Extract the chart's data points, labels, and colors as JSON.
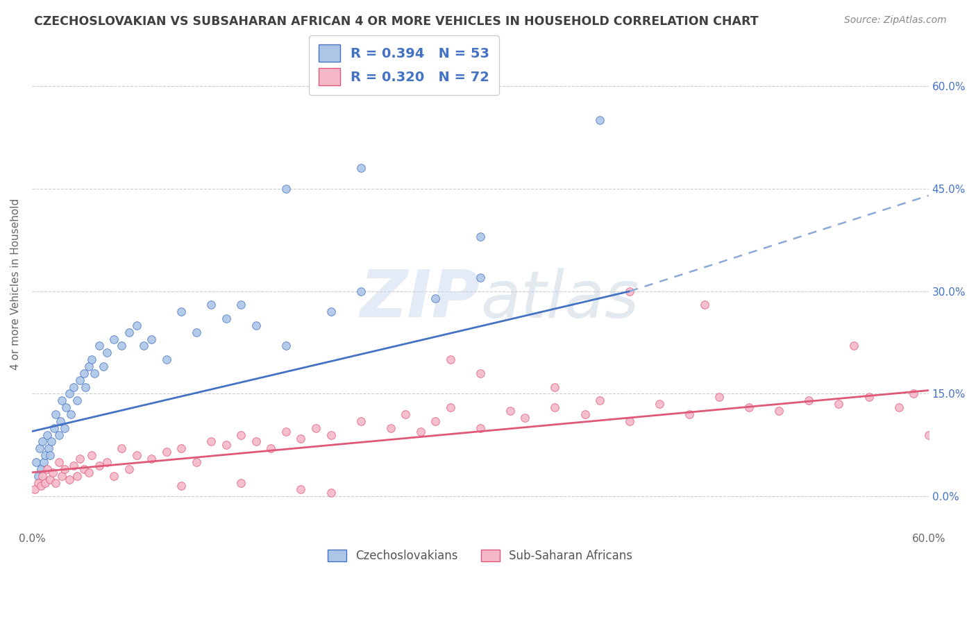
{
  "title": "CZECHOSLOVAKIAN VS SUBSAHARAN AFRICAN 4 OR MORE VEHICLES IN HOUSEHOLD CORRELATION CHART",
  "source": "Source: ZipAtlas.com",
  "ylabel": "4 or more Vehicles in Household",
  "legend1_label": "Czechoslovakians",
  "legend2_label": "Sub-Saharan Africans",
  "xlim": [
    0,
    60
  ],
  "ylim": [
    -5,
    67
  ],
  "ytick_vals": [
    0,
    15,
    30,
    45,
    60
  ],
  "ytick_labels": [
    "0.0%",
    "15.0%",
    "30.0%",
    "45.0%",
    "60.0%"
  ],
  "xtick_vals": [
    0,
    60
  ],
  "xtick_labels": [
    "0.0%",
    "60.0%"
  ],
  "blue_scatter_color": "#adc6e8",
  "pink_scatter_color": "#f5b8c8",
  "blue_line_color": "#4472c4",
  "pink_line_color": "#e05878",
  "blue_dashed_color": "#8aa8d8",
  "right_tick_color": "#4472c4",
  "title_color": "#404040",
  "background_color": "#ffffff",
  "grid_color": "#cccccc",
  "watermark": "ZIPatlas",
  "r_czech": 0.394,
  "n_czech": 53,
  "r_subsaharan": 0.32,
  "n_subsaharan": 72,
  "czech_line_x0": 0,
  "czech_line_y0": 9.5,
  "czech_line_x1": 40,
  "czech_line_y1": 30.0,
  "czech_dash_x0": 40,
  "czech_dash_y0": 30.0,
  "czech_dash_x1": 60,
  "czech_dash_y1": 44.0,
  "sub_line_x0": 0,
  "sub_line_y0": 3.5,
  "sub_line_x1": 60,
  "sub_line_y1": 15.5,
  "czech_scatter_x": [
    0.3,
    0.4,
    0.5,
    0.6,
    0.7,
    0.8,
    0.9,
    1.0,
    1.1,
    1.2,
    1.3,
    1.5,
    1.6,
    1.8,
    1.9,
    2.0,
    2.2,
    2.3,
    2.5,
    2.6,
    2.8,
    3.0,
    3.2,
    3.5,
    3.6,
    3.8,
    4.0,
    4.2,
    4.5,
    4.8,
    5.0,
    5.5,
    6.0,
    6.5,
    7.0,
    7.5,
    8.0,
    9.0,
    10.0,
    11.0,
    12.0,
    13.0,
    14.0,
    15.0,
    17.0,
    20.0,
    22.0,
    27.0,
    30.0,
    38.0,
    17.0,
    22.0,
    30.0
  ],
  "czech_scatter_y": [
    5.0,
    3.0,
    7.0,
    4.0,
    8.0,
    5.0,
    6.0,
    9.0,
    7.0,
    6.0,
    8.0,
    10.0,
    12.0,
    9.0,
    11.0,
    14.0,
    10.0,
    13.0,
    15.0,
    12.0,
    16.0,
    14.0,
    17.0,
    18.0,
    16.0,
    19.0,
    20.0,
    18.0,
    22.0,
    19.0,
    21.0,
    23.0,
    22.0,
    24.0,
    25.0,
    22.0,
    23.0,
    20.0,
    27.0,
    24.0,
    28.0,
    26.0,
    28.0,
    25.0,
    22.0,
    27.0,
    30.0,
    29.0,
    32.0,
    55.0,
    45.0,
    48.0,
    38.0
  ],
  "sub_scatter_x": [
    0.2,
    0.4,
    0.6,
    0.7,
    0.9,
    1.0,
    1.2,
    1.4,
    1.6,
    1.8,
    2.0,
    2.2,
    2.5,
    2.8,
    3.0,
    3.2,
    3.5,
    3.8,
    4.0,
    4.5,
    5.0,
    5.5,
    6.0,
    6.5,
    7.0,
    8.0,
    9.0,
    10.0,
    11.0,
    12.0,
    13.0,
    14.0,
    15.0,
    16.0,
    17.0,
    18.0,
    19.0,
    20.0,
    22.0,
    24.0,
    25.0,
    26.0,
    27.0,
    28.0,
    30.0,
    32.0,
    33.0,
    35.0,
    37.0,
    38.0,
    40.0,
    42.0,
    44.0,
    46.0,
    48.0,
    50.0,
    52.0,
    54.0,
    56.0,
    58.0,
    59.0,
    60.0,
    40.0,
    45.0,
    28.0,
    30.0,
    35.0,
    55.0,
    20.0,
    18.0,
    14.0,
    10.0
  ],
  "sub_scatter_y": [
    1.0,
    2.0,
    1.5,
    3.0,
    2.0,
    4.0,
    2.5,
    3.5,
    2.0,
    5.0,
    3.0,
    4.0,
    2.5,
    4.5,
    3.0,
    5.5,
    4.0,
    3.5,
    6.0,
    4.5,
    5.0,
    3.0,
    7.0,
    4.0,
    6.0,
    5.5,
    6.5,
    7.0,
    5.0,
    8.0,
    7.5,
    9.0,
    8.0,
    7.0,
    9.5,
    8.5,
    10.0,
    9.0,
    11.0,
    10.0,
    12.0,
    9.5,
    11.0,
    13.0,
    10.0,
    12.5,
    11.5,
    13.0,
    12.0,
    14.0,
    11.0,
    13.5,
    12.0,
    14.5,
    13.0,
    12.5,
    14.0,
    13.5,
    14.5,
    13.0,
    15.0,
    9.0,
    30.0,
    28.0,
    20.0,
    18.0,
    16.0,
    22.0,
    0.5,
    1.0,
    2.0,
    1.5
  ]
}
